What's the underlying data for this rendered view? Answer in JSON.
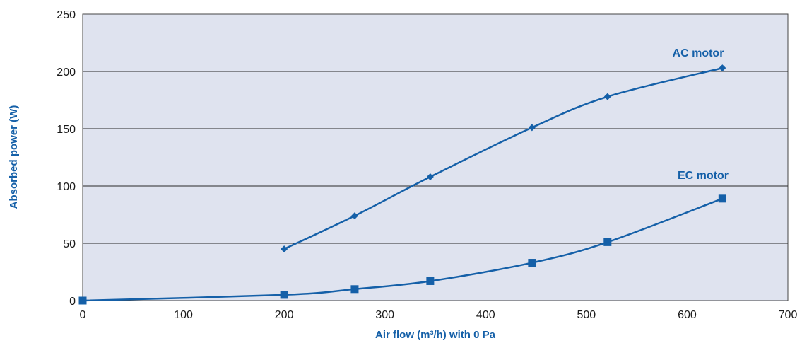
{
  "chart_data": {
    "type": "line",
    "xlabel": "Air flow (m³/h) with 0 Pa",
    "ylabel": "Absorbed power (W)",
    "xlim": [
      0,
      700
    ],
    "ylim": [
      0,
      250
    ],
    "x_ticks": [
      "0",
      "100",
      "200",
      "300",
      "400",
      "500",
      "600",
      "700"
    ],
    "y_ticks": [
      "0",
      "50",
      "100",
      "150",
      "200",
      "250"
    ],
    "grid": "horizontal",
    "plot_background": "#dfe3ef",
    "series": [
      {
        "name": "AC motor",
        "color": "#1560a8",
        "marker": "diamond",
        "points": [
          [
            200,
            45
          ],
          [
            270,
            74
          ],
          [
            345,
            108
          ],
          [
            446,
            151
          ],
          [
            521,
            178
          ],
          [
            635,
            203
          ]
        ]
      },
      {
        "name": "EC motor",
        "color": "#1560a8",
        "marker": "square",
        "points": [
          [
            0,
            0
          ],
          [
            200,
            5
          ],
          [
            270,
            10
          ],
          [
            345,
            17
          ],
          [
            446,
            33
          ],
          [
            521,
            51
          ],
          [
            635,
            89
          ]
        ]
      }
    ]
  }
}
